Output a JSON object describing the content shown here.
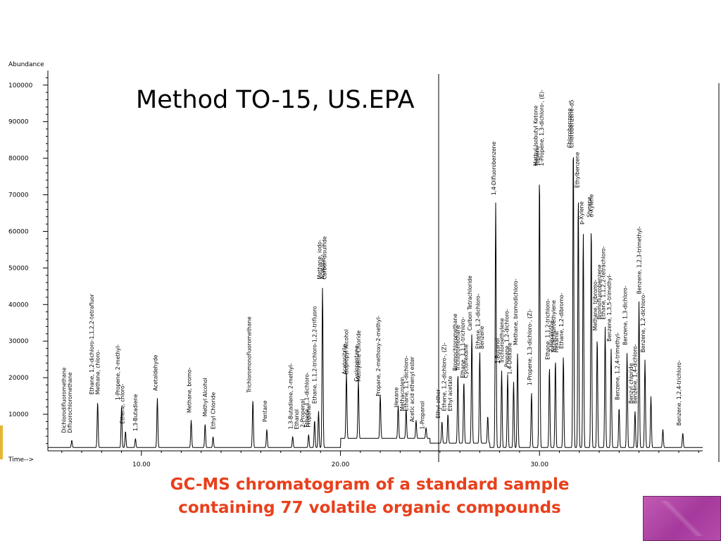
{
  "caption": {
    "line1": "GC-MS chromatogram of a standard sample",
    "line2": "containing 77 volatile organic compounds"
  },
  "colors": {
    "caption": "#e8401c",
    "trace": "#000000",
    "corner_box": "#b04aa5",
    "left_accent": "#e6b533"
  },
  "chart_data": {
    "type": "line",
    "title": "Method TO-15, US.EPA",
    "ylabel": "Abundance",
    "xlabel": "Time-->",
    "xlim": [
      5.3,
      38.2
    ],
    "ylim": [
      0,
      104000
    ],
    "x_ticks": [
      10.0,
      20.0,
      30.0
    ],
    "x_tick_labels": [
      "10.00",
      "20.00",
      "30.00"
    ],
    "y_ticks": [
      10000,
      20000,
      30000,
      40000,
      50000,
      60000,
      70000,
      80000,
      90000,
      100000
    ],
    "y_tick_labels": [
      "10000",
      "20000",
      "30000",
      "40000",
      "50000",
      "60000",
      "70000",
      "80000",
      "90000",
      "100000"
    ],
    "grid": false,
    "legend": "none",
    "baseline": 900,
    "peaks": [
      {
        "t": 6.5,
        "a": 2000
      },
      {
        "t": 7.8,
        "a": 12500
      },
      {
        "t": 9.0,
        "a": 11000
      },
      {
        "t": 9.2,
        "a": 4500
      },
      {
        "t": 9.7,
        "a": 2500
      },
      {
        "t": 10.8,
        "a": 13500
      },
      {
        "t": 12.5,
        "a": 7500
      },
      {
        "t": 13.2,
        "a": 6500
      },
      {
        "t": 13.6,
        "a": 3000
      },
      {
        "t": 15.6,
        "a": 13000
      },
      {
        "t": 16.3,
        "a": 5000
      },
      {
        "t": 17.6,
        "a": 3000
      },
      {
        "t": 18.4,
        "a": 3500
      },
      {
        "t": 18.7,
        "a": 7500
      },
      {
        "t": 18.9,
        "a": 10000
      },
      {
        "t": 19.1,
        "a": 44000
      },
      {
        "t": 20.3,
        "a": 18000
      },
      {
        "t": 20.9,
        "a": 16000
      },
      {
        "t": 22.0,
        "a": 12000
      },
      {
        "t": 22.9,
        "a": 9000
      },
      {
        "t": 23.3,
        "a": 8000
      },
      {
        "t": 23.8,
        "a": 5000
      },
      {
        "t": 24.3,
        "a": 3000
      },
      {
        "t": 25.1,
        "a": 6000
      },
      {
        "t": 25.4,
        "a": 8000
      },
      {
        "t": 25.9,
        "a": 19000
      },
      {
        "t": 26.2,
        "a": 17000
      },
      {
        "t": 26.6,
        "a": 30000
      },
      {
        "t": 27.0,
        "a": 25000
      },
      {
        "t": 27.4,
        "a": 7500
      },
      {
        "t": 27.8,
        "a": 67000
      },
      {
        "t": 28.1,
        "a": 21000
      },
      {
        "t": 28.4,
        "a": 20000
      },
      {
        "t": 28.7,
        "a": 18000
      },
      {
        "t": 28.9,
        "a": 26000
      },
      {
        "t": 29.6,
        "a": 15000
      },
      {
        "t": 30.0,
        "a": 75000
      },
      {
        "t": 30.5,
        "a": 22000
      },
      {
        "t": 30.8,
        "a": 24000
      },
      {
        "t": 31.2,
        "a": 25000
      },
      {
        "t": 31.7,
        "a": 84000
      },
      {
        "t": 31.95,
        "a": 69000
      },
      {
        "t": 32.2,
        "a": 59000
      },
      {
        "t": 32.6,
        "a": 61000
      },
      {
        "t": 32.9,
        "a": 30000
      },
      {
        "t": 33.3,
        "a": 33000
      },
      {
        "t": 33.6,
        "a": 27000
      },
      {
        "t": 34.0,
        "a": 11000
      },
      {
        "t": 34.4,
        "a": 26000
      },
      {
        "t": 34.8,
        "a": 10000
      },
      {
        "t": 35.0,
        "a": 40000
      },
      {
        "t": 35.3,
        "a": 24000
      },
      {
        "t": 35.6,
        "a": 14000
      },
      {
        "t": 36.2,
        "a": 5000
      },
      {
        "t": 37.2,
        "a": 4000
      }
    ],
    "annotations": [
      {
        "t": 6.2,
        "text": "Dichlorodifluoromethane"
      },
      {
        "t": 6.5,
        "text": "Difluorochloromethane"
      },
      {
        "t": 7.6,
        "text": "Ethane, 1,2-dichloro-1,1,2,2-tetrafluor"
      },
      {
        "t": 7.9,
        "text": "Methane, chloro-"
      },
      {
        "t": 8.9,
        "text": "1-Propene, 2-methyl-"
      },
      {
        "t": 9.15,
        "text": "Ethene, chloro-"
      },
      {
        "t": 9.8,
        "text": "1,3-Butadiene"
      },
      {
        "t": 10.8,
        "text": "Acetaldehyde"
      },
      {
        "t": 12.5,
        "text": "Methane, bromo-"
      },
      {
        "t": 13.3,
        "text": "Methyl Alcohol"
      },
      {
        "t": 13.7,
        "text": "Ethyl Chloride"
      },
      {
        "t": 15.5,
        "text": "Trichloromonofluoromethane"
      },
      {
        "t": 16.3,
        "text": "Pentane"
      },
      {
        "t": 17.6,
        "text": "1,3-Butadiene, 2-methyl-"
      },
      {
        "t": 17.9,
        "text": "Ethanol"
      },
      {
        "t": 18.2,
        "text": "2-Propenal"
      },
      {
        "t": 18.5,
        "text": "Propanal"
      },
      {
        "t": 18.4,
        "text": "Ethene, 1,1-dichloro-"
      },
      {
        "t": 18.8,
        "text": "Ethane, 1,1,2-trichloro-1,2,2-trifluoro"
      },
      {
        "t": 19.05,
        "text": "Methane, iodo-"
      },
      {
        "t": 19.2,
        "text": "Acetone"
      },
      {
        "t": 19.3,
        "text": "Carbon disulfide"
      },
      {
        "t": 20.3,
        "text": "Acetonitrile"
      },
      {
        "t": 20.4,
        "text": "Isopropyl Alcohol"
      },
      {
        "t": 20.9,
        "text": "Cyclopentane"
      },
      {
        "t": 21.0,
        "text": "Methylene Chloride"
      },
      {
        "t": 22.0,
        "text": "Propane, 2-methoxy-2-methyl-"
      },
      {
        "t": 22.9,
        "text": "Hexane"
      },
      {
        "t": 23.2,
        "text": "Methacrolein"
      },
      {
        "t": 23.4,
        "text": "Ethane, 1,1-dichloro-"
      },
      {
        "t": 23.7,
        "text": "Acetic acid ethenyl ester"
      },
      {
        "t": 24.2,
        "text": "1-Propanol"
      },
      {
        "t": 25.0,
        "text": "Ethyl ether"
      },
      {
        "t": 25.3,
        "text": "Ethene, 1,2-dichloro-, (Z)-"
      },
      {
        "t": 25.6,
        "text": "Ethyl acetate"
      },
      {
        "t": 25.85,
        "text": "Bromochloromethane"
      },
      {
        "t": 26.0,
        "text": "Trichloromethane"
      },
      {
        "t": 26.25,
        "text": "Ethane, 1,1,1-trichloro-"
      },
      {
        "t": 26.4,
        "text": "Cyclohexane"
      },
      {
        "t": 26.6,
        "text": "Carbon Tetrachloride"
      },
      {
        "t": 27.0,
        "text": "Ethane, 1,2-dichloro-"
      },
      {
        "t": 27.2,
        "text": "Benzene"
      },
      {
        "t": 27.8,
        "text": "1,4-Difluorobenzene"
      },
      {
        "t": 28.0,
        "text": "1-Butanol"
      },
      {
        "t": 28.2,
        "text": "Trichloroethylene"
      },
      {
        "t": 28.45,
        "text": "Propane, 1,2-dichloro-"
      },
      {
        "t": 28.6,
        "text": "1,4-Dioxane"
      },
      {
        "t": 28.9,
        "text": "Methane, bromodichloro-"
      },
      {
        "t": 29.6,
        "text": "1-Propene, 1,3-dichloro-, (Z)-"
      },
      {
        "t": 29.9,
        "text": "Methyl Isobutyl Ketone"
      },
      {
        "t": 30.0,
        "text": "Toluene"
      },
      {
        "t": 30.2,
        "text": "1-Propene, 1,3-dichloro-, (E)-"
      },
      {
        "t": 30.5,
        "text": "Ethane, 1,1,2-trichloro-"
      },
      {
        "t": 30.7,
        "text": "2-Hexanone"
      },
      {
        "t": 30.8,
        "text": "Tetrachloroethylene"
      },
      {
        "t": 30.95,
        "text": "Hexanal"
      },
      {
        "t": 31.2,
        "text": "Ethane, 1,2-dibromo-"
      },
      {
        "t": 31.6,
        "text": "Chlorobenzene"
      },
      {
        "t": 31.7,
        "text": "Chlorobenzene-d5"
      },
      {
        "t": 32.0,
        "text": "Ethylbenzene"
      },
      {
        "t": 32.2,
        "text": "p-Xylene"
      },
      {
        "t": 32.6,
        "text": "Styrene"
      },
      {
        "t": 32.7,
        "text": "o-Xylene"
      },
      {
        "t": 32.9,
        "text": "Methane, tribromo-"
      },
      {
        "t": 33.1,
        "text": "Bromofluorobenzene"
      },
      {
        "t": 33.3,
        "text": "Ethane, 1,1,2,2-tetrachloro-"
      },
      {
        "t": 33.6,
        "text": "Benzene, 1,3,5-trimethyl-"
      },
      {
        "t": 34.0,
        "text": "Benzene, 1,2,4-trimethyl-"
      },
      {
        "t": 34.4,
        "text": "Benzene, 1,3-dichloro-"
      },
      {
        "t": 34.7,
        "text": "Benzyl chloride"
      },
      {
        "t": 34.9,
        "text": "Benzene, 1,4-dichloro-"
      },
      {
        "t": 35.1,
        "text": "Benzene, 1,2,3-trimethyl-"
      },
      {
        "t": 35.3,
        "text": "Benzene, 1,2-dichloro-"
      },
      {
        "t": 37.1,
        "text": "Benzene, 1,2,4-trichloro-"
      }
    ]
  }
}
